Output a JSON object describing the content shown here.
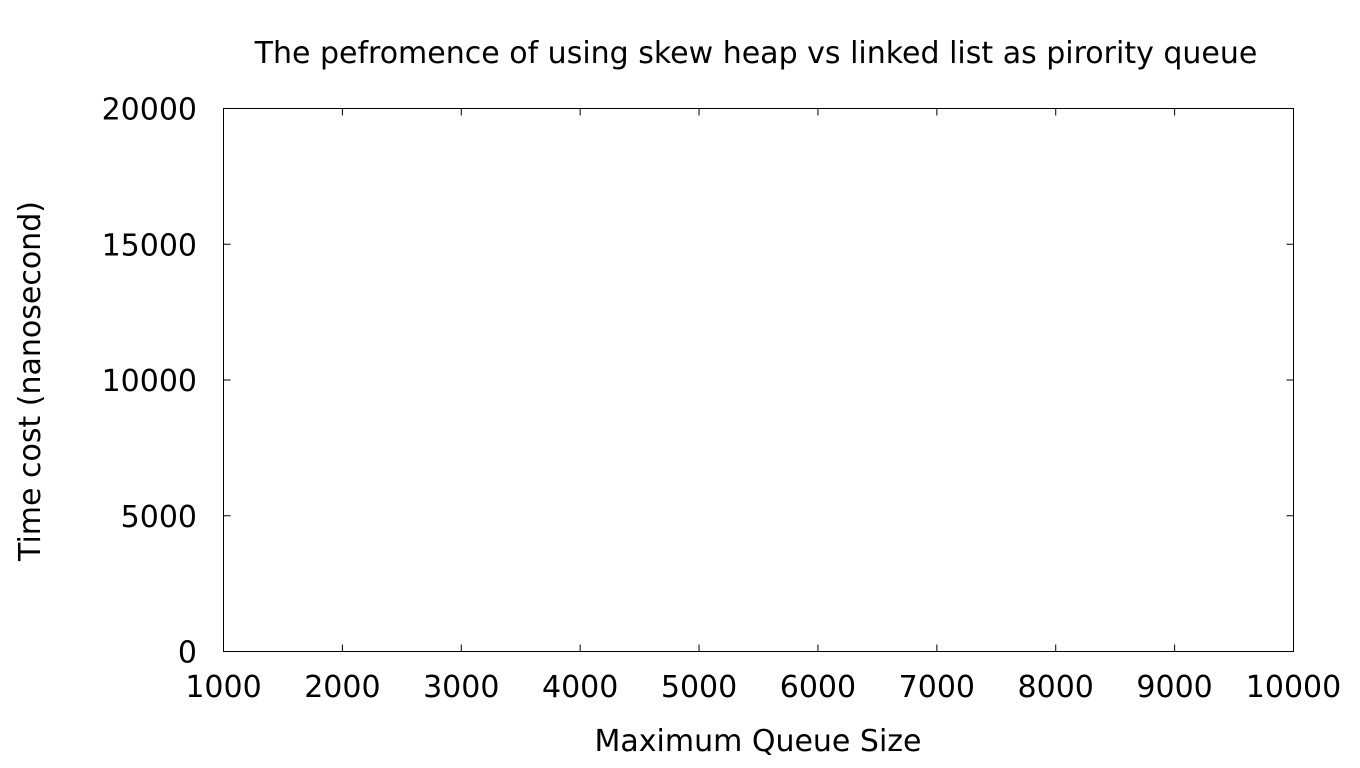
{
  "chart_data": {
    "type": "line",
    "title": "The pefromence of using skew heap vs linked list as pirority queue",
    "xlabel": "Maximum Queue Size",
    "ylabel": "Time cost (nanosecond)",
    "xlim": [
      1000,
      10000
    ],
    "ylim": [
      0,
      20000
    ],
    "x_ticks": [
      1000,
      2000,
      3000,
      4000,
      5000,
      6000,
      7000,
      8000,
      9000,
      10000
    ],
    "y_ticks": [
      0,
      5000,
      10000,
      15000,
      20000
    ],
    "x_tick_labels": [
      "1000",
      "2000",
      "3000",
      "4000",
      "5000",
      "6000",
      "7000",
      "8000",
      "9000",
      "10000"
    ],
    "y_tick_labels": [
      "0",
      "5000",
      "10000",
      "15000",
      "20000"
    ],
    "grid": false,
    "series": []
  }
}
